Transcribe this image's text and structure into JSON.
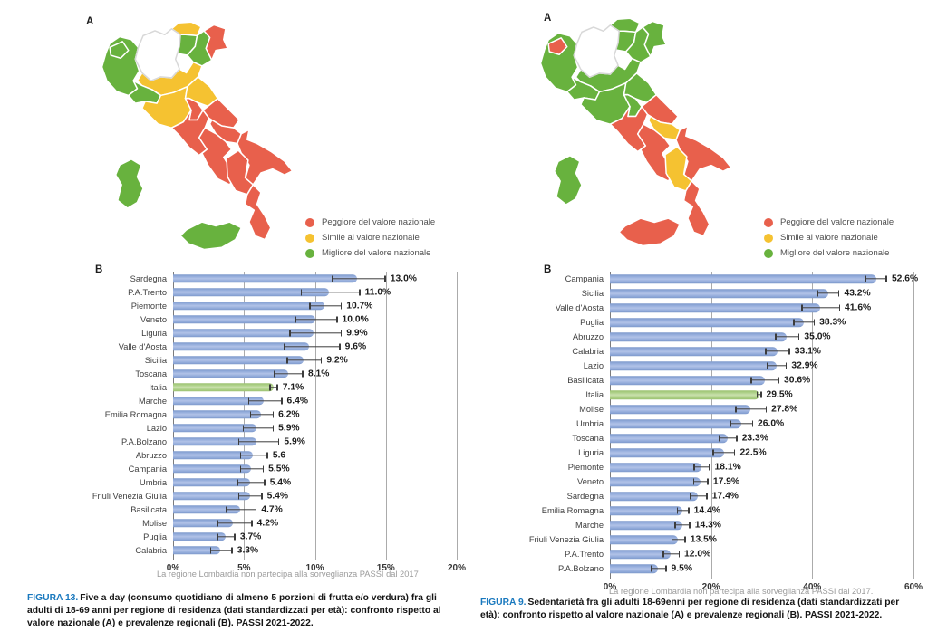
{
  "colors": {
    "worse": "#E8604C",
    "similar": "#F5C231",
    "better": "#68B23E",
    "no_data": "#FFFFFF",
    "bar": "#8CA6D7",
    "bar_highlight": "#AFD08C",
    "error_bar": "#3C3C3C",
    "grid": "#ABABAB",
    "figura_label_blue": "#1878BE"
  },
  "legend": {
    "items": [
      {
        "status": "worse",
        "label": "Peggiore del valore nazionale"
      },
      {
        "status": "similar",
        "label": "Simile al valore nazionale"
      },
      {
        "status": "better",
        "label": "Migliore del valore nazionale"
      }
    ]
  },
  "figures": [
    {
      "panel_a_label": "A",
      "panel_b_label": "B",
      "map": {
        "valle_daosta": "better",
        "piemonte": "better",
        "liguria": "better",
        "lombardia": "no_data",
        "bolzano": "similar",
        "trento": "better",
        "veneto": "better",
        "friuli": "worse",
        "emilia_romagna": "similar",
        "toscana": "similar",
        "marche": "similar",
        "umbria": "worse",
        "lazio": "worse",
        "abruzzo": "worse",
        "molise": "worse",
        "campania": "worse",
        "puglia": "worse",
        "basilicata": "worse",
        "calabria": "worse",
        "sicilia": "better",
        "sardegna": "better"
      },
      "footnote": "La regione Lombardia non partecipa alla sorveglianza PASSI dal 2017",
      "caption_label": "FIGURA 13.",
      "caption_text": "Five a day (consumo quotidiano di almeno 5 porzioni di frutta e/o verdura) fra gli adulti di 18-69 anni per regione di residenza (dati standardizzati per età): confronto rispetto al valore nazionale (A) e prevalenze regionali (B). PASSI 2021-2022."
    },
    {
      "panel_a_label": "A",
      "panel_b_label": "B",
      "map": {
        "valle_daosta": "worse",
        "piemonte": "better",
        "liguria": "better",
        "lombardia": "no_data",
        "bolzano": "better",
        "trento": "better",
        "veneto": "better",
        "friuli": "better",
        "emilia_romagna": "better",
        "toscana": "better",
        "marche": "better",
        "umbria": "better",
        "lazio": "worse",
        "abruzzo": "worse",
        "molise": "similar",
        "campania": "worse",
        "puglia": "worse",
        "basilicata": "similar",
        "calabria": "worse",
        "sicilia": "worse",
        "sardegna": "better"
      },
      "footnote": "La regione Lombardia non partecipa alla sorveglianza PASSI dal 2017.",
      "caption_label": "FIGURA 9.",
      "caption_text": "Sedentarietà fra gli adulti 18-69enni per regione di residenza (dati standardizzati per età): confronto rispetto al valore nazionale (A) e prevalenze regionali (B). PASSI 2021-2022."
    }
  ],
  "chart_data": [
    {
      "type": "bar",
      "orientation": "horizontal",
      "panel": "B",
      "xlim": [
        0,
        20
      ],
      "x_tick_values": [
        0,
        5,
        10,
        15,
        20
      ],
      "x_ticks": [
        "0%",
        "5%",
        "10%",
        "15%",
        "20%"
      ],
      "grid": true,
      "highlight_category": "Italia",
      "categories": [
        "Sardegna",
        "P.A.Trento",
        "Piemonte",
        "Veneto",
        "Liguria",
        "Valle d'Aosta",
        "Sicilia",
        "Toscana",
        "Italia",
        "Marche",
        "Emilia Romagna",
        "Lazio",
        "P.A.Bolzano",
        "Abruzzo",
        "Campania",
        "Umbria",
        "Friuli Venezia Giulia",
        "Basilicata",
        "Molise",
        "Puglia",
        "Calabria"
      ],
      "values": [
        13.0,
        11.0,
        10.7,
        10.0,
        9.9,
        9.6,
        9.2,
        8.1,
        7.1,
        6.4,
        6.2,
        5.9,
        5.9,
        5.6,
        5.5,
        5.4,
        5.4,
        4.7,
        4.2,
        3.7,
        3.3
      ],
      "value_labels": [
        "13.0%",
        "11.0%",
        "10.7%",
        "10.0%",
        "9.9%",
        "9.6%",
        "9.2%",
        "8.1%",
        "7.1%",
        "6.4%",
        "6.2%",
        "5.9%",
        "5.9%",
        "5.6",
        "5.5%",
        "5.4%",
        "5.4%",
        "4.7%",
        "4.2%",
        "3.7%",
        "3.3%"
      ],
      "ci_low": [
        11.2,
        9.0,
        9.6,
        8.6,
        8.2,
        7.8,
        8.0,
        7.1,
        6.8,
        5.3,
        5.4,
        4.9,
        4.6,
        4.7,
        4.7,
        4.5,
        4.6,
        3.7,
        3.1,
        3.1,
        2.6
      ],
      "ci_high": [
        15.0,
        13.2,
        11.9,
        11.6,
        11.9,
        11.8,
        10.5,
        9.2,
        7.4,
        7.7,
        7.1,
        7.1,
        7.5,
        6.7,
        6.4,
        6.5,
        6.3,
        5.9,
        5.6,
        4.4,
        4.2
      ]
    },
    {
      "type": "bar",
      "orientation": "horizontal",
      "panel": "B",
      "xlim": [
        0,
        60
      ],
      "x_tick_values": [
        0,
        20,
        40,
        60
      ],
      "x_ticks": [
        "0%",
        "20%",
        "40%",
        "60%"
      ],
      "grid": true,
      "highlight_category": "Italia",
      "categories": [
        "Campania",
        "Sicilia",
        "Valle d'Aosta",
        "Puglia",
        "Abruzzo",
        "Calabria",
        "Lazio",
        "Basilicata",
        "Italia",
        "Molise",
        "Umbria",
        "Toscana",
        "Liguria",
        "Piemonte",
        "Veneto",
        "Sardegna",
        "Emilia Romagna",
        "Marche",
        "Friuli Venezia Giulia",
        "P.A.Trento",
        "P.A.Bolzano"
      ],
      "values": [
        52.6,
        43.2,
        41.6,
        38.3,
        35.0,
        33.1,
        32.9,
        30.6,
        29.5,
        27.8,
        26.0,
        23.3,
        22.5,
        18.1,
        17.9,
        17.4,
        14.4,
        14.3,
        13.5,
        12.0,
        9.5
      ],
      "value_labels": [
        "52.6%",
        "43.2%",
        "41.6%",
        "38.3%",
        "35.0%",
        "33.1%",
        "32.9%",
        "30.6%",
        "29.5%",
        "27.8%",
        "26.0%",
        "23.3%",
        "22.5%",
        "18.1%",
        "17.9%",
        "17.4%",
        "14.4%",
        "14.3%",
        "13.5%",
        "12.0%",
        "9.5%"
      ],
      "ci_low": [
        50.4,
        41.0,
        37.8,
        36.2,
        32.6,
        30.7,
        30.9,
        27.8,
        29.0,
        24.8,
        23.8,
        21.5,
        20.3,
        16.5,
        16.4,
        15.7,
        13.2,
        12.8,
        12.1,
        10.4,
        8.0
      ],
      "ci_high": [
        54.8,
        45.4,
        45.5,
        40.5,
        37.5,
        35.6,
        35.0,
        33.5,
        30.0,
        31.0,
        28.3,
        25.2,
        24.8,
        19.8,
        19.5,
        19.3,
        15.7,
        15.9,
        15.0,
        13.8,
        11.2
      ]
    }
  ]
}
